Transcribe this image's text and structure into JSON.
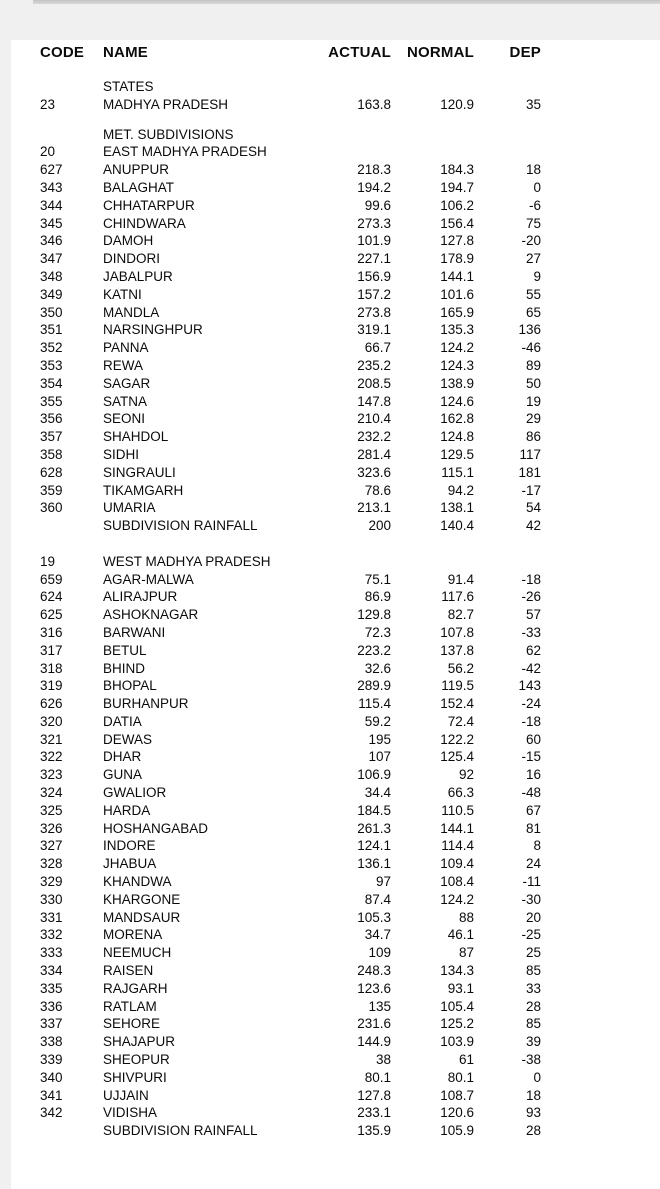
{
  "table": {
    "header": {
      "code": "CODE",
      "name": "NAME",
      "actual": "ACTUAL",
      "normal": "NORMAL",
      "dep": "DEP"
    },
    "rows": [
      {
        "kind": "label",
        "name": "STATES"
      },
      {
        "kind": "data",
        "code": "23",
        "name": "MADHYA PRADESH",
        "actual": "163.8",
        "normal": "120.9",
        "dep": "35"
      },
      {
        "kind": "blank-sm"
      },
      {
        "kind": "label",
        "name": "MET. SUBDIVISIONS"
      },
      {
        "kind": "data",
        "code": "20",
        "name": "EAST MADHYA PRADESH",
        "actual": "",
        "normal": "",
        "dep": ""
      },
      {
        "kind": "data",
        "code": "627",
        "name": "ANUPPUR",
        "actual": "218.3",
        "normal": "184.3",
        "dep": "18"
      },
      {
        "kind": "data",
        "code": "343",
        "name": "BALAGHAT",
        "actual": "194.2",
        "normal": "194.7",
        "dep": "0"
      },
      {
        "kind": "data",
        "code": "344",
        "name": "CHHATARPUR",
        "actual": "99.6",
        "normal": "106.2",
        "dep": "-6"
      },
      {
        "kind": "data",
        "code": "345",
        "name": "CHINDWARA",
        "actual": "273.3",
        "normal": "156.4",
        "dep": "75"
      },
      {
        "kind": "data",
        "code": "346",
        "name": "DAMOH",
        "actual": "101.9",
        "normal": "127.8",
        "dep": "-20"
      },
      {
        "kind": "data",
        "code": "347",
        "name": "DINDORI",
        "actual": "227.1",
        "normal": "178.9",
        "dep": "27"
      },
      {
        "kind": "data",
        "code": "348",
        "name": "JABALPUR",
        "actual": "156.9",
        "normal": "144.1",
        "dep": "9"
      },
      {
        "kind": "data",
        "code": "349",
        "name": "KATNI",
        "actual": "157.2",
        "normal": "101.6",
        "dep": "55"
      },
      {
        "kind": "data",
        "code": "350",
        "name": "MANDLA",
        "actual": "273.8",
        "normal": "165.9",
        "dep": "65"
      },
      {
        "kind": "data",
        "code": "351",
        "name": "NARSINGHPUR",
        "actual": "319.1",
        "normal": "135.3",
        "dep": "136"
      },
      {
        "kind": "data",
        "code": "352",
        "name": "PANNA",
        "actual": "66.7",
        "normal": "124.2",
        "dep": "-46"
      },
      {
        "kind": "data",
        "code": "353",
        "name": "REWA",
        "actual": "235.2",
        "normal": "124.3",
        "dep": "89"
      },
      {
        "kind": "data",
        "code": "354",
        "name": "SAGAR",
        "actual": "208.5",
        "normal": "138.9",
        "dep": "50"
      },
      {
        "kind": "data",
        "code": "355",
        "name": "SATNA",
        "actual": "147.8",
        "normal": "124.6",
        "dep": "19"
      },
      {
        "kind": "data",
        "code": "356",
        "name": "SEONI",
        "actual": "210.4",
        "normal": "162.8",
        "dep": "29"
      },
      {
        "kind": "data",
        "code": "357",
        "name": "SHAHDOL",
        "actual": "232.2",
        "normal": "124.8",
        "dep": "86"
      },
      {
        "kind": "data",
        "code": "358",
        "name": "SIDHI",
        "actual": "281.4",
        "normal": "129.5",
        "dep": "117"
      },
      {
        "kind": "data",
        "code": "628",
        "name": "SINGRAULI",
        "actual": "323.6",
        "normal": "115.1",
        "dep": "181"
      },
      {
        "kind": "data",
        "code": "359",
        "name": "TIKAMGARH",
        "actual": "78.6",
        "normal": "94.2",
        "dep": "-17"
      },
      {
        "kind": "data",
        "code": "360",
        "name": "UMARIA",
        "actual": "213.1",
        "normal": "138.1",
        "dep": "54"
      },
      {
        "kind": "total",
        "code": "",
        "name": "SUBDIVISION RAINFALL",
        "actual": "200",
        "normal": "140.4",
        "dep": "42"
      },
      {
        "kind": "blank"
      },
      {
        "kind": "data",
        "code": "19",
        "name": "WEST MADHYA PRADESH",
        "actual": "",
        "normal": "",
        "dep": ""
      },
      {
        "kind": "data",
        "code": "659",
        "name": "AGAR-MALWA",
        "actual": "75.1",
        "normal": "91.4",
        "dep": "-18"
      },
      {
        "kind": "data",
        "code": "624",
        "name": "ALIRAJPUR",
        "actual": "86.9",
        "normal": "117.6",
        "dep": "-26"
      },
      {
        "kind": "data",
        "code": "625",
        "name": "ASHOKNAGAR",
        "actual": "129.8",
        "normal": "82.7",
        "dep": "57"
      },
      {
        "kind": "data",
        "code": "316",
        "name": "BARWANI",
        "actual": "72.3",
        "normal": "107.8",
        "dep": "-33"
      },
      {
        "kind": "data",
        "code": "317",
        "name": "BETUL",
        "actual": "223.2",
        "normal": "137.8",
        "dep": "62"
      },
      {
        "kind": "data",
        "code": "318",
        "name": "BHIND",
        "actual": "32.6",
        "normal": "56.2",
        "dep": "-42"
      },
      {
        "kind": "data",
        "code": "319",
        "name": "BHOPAL",
        "actual": "289.9",
        "normal": "119.5",
        "dep": "143"
      },
      {
        "kind": "data",
        "code": "626",
        "name": "BURHANPUR",
        "actual": "115.4",
        "normal": "152.4",
        "dep": "-24"
      },
      {
        "kind": "data",
        "code": "320",
        "name": "DATIA",
        "actual": "59.2",
        "normal": "72.4",
        "dep": "-18"
      },
      {
        "kind": "data",
        "code": "321",
        "name": "DEWAS",
        "actual": "195",
        "normal": "122.2",
        "dep": "60"
      },
      {
        "kind": "data",
        "code": "322",
        "name": "DHAR",
        "actual": "107",
        "normal": "125.4",
        "dep": "-15"
      },
      {
        "kind": "data",
        "code": "323",
        "name": "GUNA",
        "actual": "106.9",
        "normal": "92",
        "dep": "16"
      },
      {
        "kind": "data",
        "code": "324",
        "name": "GWALIOR",
        "actual": "34.4",
        "normal": "66.3",
        "dep": "-48"
      },
      {
        "kind": "data",
        "code": "325",
        "name": "HARDA",
        "actual": "184.5",
        "normal": "110.5",
        "dep": "67"
      },
      {
        "kind": "data",
        "code": "326",
        "name": "HOSHANGABAD",
        "actual": "261.3",
        "normal": "144.1",
        "dep": "81"
      },
      {
        "kind": "data",
        "code": "327",
        "name": "INDORE",
        "actual": "124.1",
        "normal": "114.4",
        "dep": "8"
      },
      {
        "kind": "data",
        "code": "328",
        "name": "JHABUA",
        "actual": "136.1",
        "normal": "109.4",
        "dep": "24"
      },
      {
        "kind": "data",
        "code": "329",
        "name": "KHANDWA",
        "actual": "97",
        "normal": "108.4",
        "dep": "-11"
      },
      {
        "kind": "data",
        "code": "330",
        "name": "KHARGONE",
        "actual": "87.4",
        "normal": "124.2",
        "dep": "-30"
      },
      {
        "kind": "data",
        "code": "331",
        "name": "MANDSAUR",
        "actual": "105.3",
        "normal": "88",
        "dep": "20"
      },
      {
        "kind": "data",
        "code": "332",
        "name": "MORENA",
        "actual": "34.7",
        "normal": "46.1",
        "dep": "-25"
      },
      {
        "kind": "data",
        "code": "333",
        "name": "NEEMUCH",
        "actual": "109",
        "normal": "87",
        "dep": "25"
      },
      {
        "kind": "data",
        "code": "334",
        "name": "RAISEN",
        "actual": "248.3",
        "normal": "134.3",
        "dep": "85"
      },
      {
        "kind": "data",
        "code": "335",
        "name": "RAJGARH",
        "actual": "123.6",
        "normal": "93.1",
        "dep": "33"
      },
      {
        "kind": "data",
        "code": "336",
        "name": "RATLAM",
        "actual": "135",
        "normal": "105.4",
        "dep": "28"
      },
      {
        "kind": "data",
        "code": "337",
        "name": "SEHORE",
        "actual": "231.6",
        "normal": "125.2",
        "dep": "85"
      },
      {
        "kind": "data",
        "code": "338",
        "name": "SHAJAPUR",
        "actual": "144.9",
        "normal": "103.9",
        "dep": "39"
      },
      {
        "kind": "data",
        "code": "339",
        "name": "SHEOPUR",
        "actual": "38",
        "normal": "61",
        "dep": "-38"
      },
      {
        "kind": "data",
        "code": "340",
        "name": "SHIVPURI",
        "actual": "80.1",
        "normal": "80.1",
        "dep": "0"
      },
      {
        "kind": "data",
        "code": "341",
        "name": "UJJAIN",
        "actual": "127.8",
        "normal": "108.7",
        "dep": "18"
      },
      {
        "kind": "data",
        "code": "342",
        "name": "VIDISHA",
        "actual": "233.1",
        "normal": "120.6",
        "dep": "93"
      },
      {
        "kind": "total",
        "code": "",
        "name": "SUBDIVISION RAINFALL",
        "actual": "135.9",
        "normal": "105.9",
        "dep": "28"
      }
    ]
  },
  "colors": {
    "page_background": "#ffffff",
    "margin_gray": "#f0f0f0",
    "top_divider": "#c9c9c9",
    "text": "#0b0b0b"
  }
}
